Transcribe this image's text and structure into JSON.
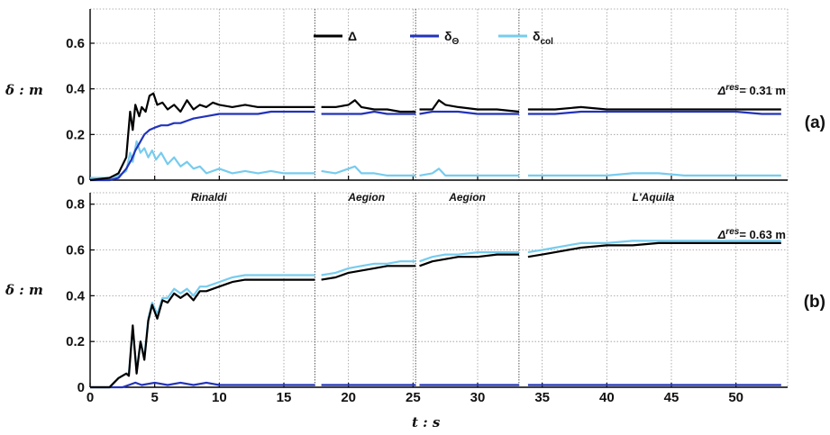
{
  "chart_data": [
    {
      "type": "line",
      "panel_tag": "(a)",
      "ylabel": "δ : m",
      "ylim": [
        0,
        0.75
      ],
      "yticks": [
        "0",
        "0.2",
        "0.4",
        "0.6"
      ],
      "ytick_values": [
        0,
        0.2,
        0.4,
        0.6
      ],
      "annotation": {
        "prefix": "Δ",
        "sup": "res",
        "text": "= 0.31 m"
      },
      "legend": {
        "position": "top-center",
        "items": [
          "Δ",
          "δΘ",
          "δcol"
        ]
      },
      "segment_labels": [
        "Rinaldi",
        "Aegion",
        "Aegion",
        "L'Aquila"
      ],
      "segment_breaks": [
        17.4,
        25.2,
        33.2
      ],
      "segment_ranges": [
        [
          0,
          17.4
        ],
        [
          17.9,
          25.2
        ],
        [
          25.5,
          33.2
        ],
        [
          33.9,
          53.5
        ]
      ],
      "series": [
        {
          "name": "Δ",
          "color": "#000000",
          "x": [
            0,
            1.5,
            2.2,
            2.8,
            3.1,
            3.3,
            3.5,
            3.8,
            4.0,
            4.3,
            4.6,
            4.9,
            5.2,
            5.6,
            6.0,
            6.5,
            7.0,
            7.5,
            8.0,
            8.5,
            9.0,
            9.5,
            10.0,
            11.0,
            12.0,
            13.0,
            14.0,
            15.0,
            16.0,
            17.4,
            17.9,
            19.0,
            20.0,
            20.5,
            21.0,
            22.0,
            23.0,
            24.0,
            25.2,
            25.5,
            26.5,
            27.0,
            27.5,
            28.5,
            30.0,
            31.5,
            33.2,
            33.9,
            36.0,
            38.0,
            40.0,
            42.0,
            44.0,
            46.0,
            48.0,
            50.0,
            52.0,
            53.5
          ],
          "values": [
            0.0,
            0.01,
            0.03,
            0.1,
            0.3,
            0.22,
            0.33,
            0.28,
            0.32,
            0.3,
            0.37,
            0.38,
            0.33,
            0.34,
            0.31,
            0.33,
            0.3,
            0.35,
            0.31,
            0.33,
            0.32,
            0.34,
            0.33,
            0.32,
            0.33,
            0.32,
            0.32,
            0.32,
            0.32,
            0.32,
            0.32,
            0.32,
            0.33,
            0.35,
            0.32,
            0.31,
            0.31,
            0.3,
            0.3,
            0.31,
            0.31,
            0.35,
            0.33,
            0.32,
            0.31,
            0.31,
            0.3,
            0.31,
            0.31,
            0.32,
            0.31,
            0.31,
            0.31,
            0.31,
            0.31,
            0.31,
            0.31,
            0.31
          ]
        },
        {
          "name": "δΘ",
          "color": "#2233bb",
          "x": [
            0,
            1.5,
            2.2,
            2.8,
            3.2,
            3.5,
            3.8,
            4.2,
            4.6,
            5.0,
            5.5,
            6.0,
            6.5,
            7.0,
            7.5,
            8.0,
            9.0,
            10.0,
            11.0,
            12.0,
            13.0,
            14.0,
            15.0,
            16.0,
            17.4,
            17.9,
            19.0,
            20.0,
            21.0,
            22.0,
            23.0,
            24.0,
            25.2,
            25.5,
            26.5,
            27.5,
            28.5,
            30.0,
            31.5,
            33.2,
            33.9,
            36.0,
            38.0,
            40.0,
            42.0,
            44.0,
            46.0,
            48.0,
            50.0,
            52.0,
            53.5
          ],
          "values": [
            0.0,
            0.0,
            0.01,
            0.05,
            0.09,
            0.13,
            0.16,
            0.2,
            0.22,
            0.23,
            0.24,
            0.24,
            0.25,
            0.25,
            0.26,
            0.27,
            0.28,
            0.29,
            0.29,
            0.29,
            0.29,
            0.3,
            0.3,
            0.3,
            0.3,
            0.29,
            0.29,
            0.29,
            0.29,
            0.3,
            0.29,
            0.29,
            0.29,
            0.29,
            0.3,
            0.3,
            0.3,
            0.29,
            0.29,
            0.29,
            0.29,
            0.29,
            0.3,
            0.3,
            0.3,
            0.3,
            0.3,
            0.3,
            0.3,
            0.29,
            0.29
          ]
        },
        {
          "name": "δcol",
          "color": "#77ccee",
          "x": [
            0,
            1.5,
            2.2,
            2.8,
            3.1,
            3.3,
            3.6,
            3.9,
            4.2,
            4.5,
            4.8,
            5.1,
            5.5,
            6.0,
            6.5,
            7.0,
            7.5,
            8.0,
            8.5,
            9.0,
            10.0,
            11.0,
            12.0,
            13.0,
            14.0,
            15.0,
            16.0,
            17.4,
            17.9,
            19.0,
            20.0,
            20.5,
            21.0,
            22.0,
            23.0,
            24.0,
            25.2,
            25.5,
            26.5,
            27.0,
            27.5,
            28.5,
            30.0,
            31.5,
            33.2,
            33.9,
            36.0,
            38.0,
            40.0,
            42.0,
            44.0,
            46.0,
            48.0,
            50.0,
            52.0,
            53.5
          ],
          "values": [
            0.01,
            0.01,
            0.02,
            0.04,
            0.12,
            0.08,
            0.17,
            0.12,
            0.14,
            0.1,
            0.13,
            0.09,
            0.12,
            0.07,
            0.1,
            0.06,
            0.08,
            0.05,
            0.06,
            0.03,
            0.05,
            0.03,
            0.04,
            0.03,
            0.04,
            0.03,
            0.03,
            0.03,
            0.04,
            0.03,
            0.05,
            0.06,
            0.03,
            0.03,
            0.02,
            0.02,
            0.02,
            0.02,
            0.03,
            0.05,
            0.02,
            0.02,
            0.02,
            0.02,
            0.02,
            0.02,
            0.02,
            0.02,
            0.02,
            0.03,
            0.03,
            0.02,
            0.02,
            0.02,
            0.02,
            0.02
          ]
        }
      ]
    },
    {
      "type": "line",
      "panel_tag": "(b)",
      "xlabel": "t : s",
      "ylabel": "δ : m",
      "xlim": [
        0,
        54
      ],
      "xticks": [
        "0",
        "5",
        "10",
        "15",
        "20",
        "25",
        "30",
        "35",
        "40",
        "45",
        "50"
      ],
      "xtick_values": [
        0,
        5,
        10,
        15,
        20,
        25,
        30,
        35,
        40,
        45,
        50
      ],
      "ylim": [
        0,
        0.85
      ],
      "yticks": [
        "0",
        "0.2",
        "0.4",
        "0.6",
        "0.8"
      ],
      "ytick_values": [
        0,
        0.2,
        0.4,
        0.6,
        0.8
      ],
      "annotation": {
        "prefix": "Δ",
        "sup": "res",
        "text": "= 0.63 m"
      },
      "segment_breaks": [
        17.4,
        25.2,
        33.2
      ],
      "segment_ranges": [
        [
          0,
          17.4
        ],
        [
          17.9,
          25.2
        ],
        [
          25.5,
          33.2
        ],
        [
          33.9,
          53.5
        ]
      ],
      "series": [
        {
          "name": "Δ",
          "color": "#000000",
          "x": [
            0,
            1.5,
            2.2,
            2.8,
            3.0,
            3.3,
            3.6,
            3.9,
            4.2,
            4.5,
            4.8,
            5.2,
            5.6,
            6.0,
            6.5,
            7.0,
            7.5,
            8.0,
            8.5,
            9.0,
            10.0,
            11.0,
            12.0,
            13.0,
            14.0,
            15.0,
            16.0,
            17.4,
            17.9,
            19.0,
            20.0,
            21.0,
            22.0,
            23.0,
            24.0,
            25.2,
            25.5,
            26.5,
            27.5,
            28.5,
            30.0,
            31.5,
            33.2,
            33.9,
            35.0,
            36.0,
            37.0,
            38.0,
            40.0,
            42.0,
            44.0,
            46.0,
            48.0,
            50.0,
            52.0,
            53.5
          ],
          "values": [
            0.0,
            0.0,
            0.04,
            0.06,
            0.05,
            0.27,
            0.06,
            0.2,
            0.12,
            0.29,
            0.36,
            0.3,
            0.38,
            0.37,
            0.41,
            0.39,
            0.41,
            0.38,
            0.42,
            0.42,
            0.44,
            0.46,
            0.47,
            0.47,
            0.47,
            0.47,
            0.47,
            0.47,
            0.47,
            0.48,
            0.5,
            0.51,
            0.52,
            0.53,
            0.53,
            0.53,
            0.53,
            0.55,
            0.56,
            0.57,
            0.57,
            0.58,
            0.58,
            0.57,
            0.58,
            0.59,
            0.6,
            0.61,
            0.62,
            0.62,
            0.63,
            0.63,
            0.63,
            0.63,
            0.63,
            0.63
          ]
        },
        {
          "name": "δΘ",
          "color": "#2233bb",
          "x": [
            0,
            2.5,
            3.0,
            3.5,
            4.0,
            5.0,
            6.0,
            7.0,
            8.0,
            9.0,
            10.0,
            12.0,
            14.0,
            16.0,
            17.4,
            17.9,
            20.0,
            22.0,
            25.2,
            25.5,
            28.0,
            30.0,
            33.2,
            33.9,
            36.0,
            40.0,
            44.0,
            48.0,
            52.0,
            53.5
          ],
          "values": [
            0.0,
            0.0,
            0.01,
            0.02,
            0.01,
            0.02,
            0.01,
            0.02,
            0.01,
            0.02,
            0.01,
            0.01,
            0.01,
            0.01,
            0.01,
            0.01,
            0.01,
            0.01,
            0.01,
            0.01,
            0.01,
            0.01,
            0.01,
            0.01,
            0.01,
            0.01,
            0.01,
            0.01,
            0.01,
            0.01
          ]
        },
        {
          "name": "δcol",
          "color": "#77ccee",
          "x": [
            0,
            1.5,
            2.2,
            2.8,
            3.0,
            3.3,
            3.6,
            3.9,
            4.2,
            4.5,
            4.8,
            5.2,
            5.6,
            6.0,
            6.5,
            7.0,
            7.5,
            8.0,
            8.5,
            9.0,
            10.0,
            11.0,
            12.0,
            13.0,
            14.0,
            15.0,
            16.0,
            17.4,
            17.9,
            19.0,
            20.0,
            21.0,
            22.0,
            23.0,
            24.0,
            25.2,
            25.5,
            26.5,
            27.5,
            28.5,
            30.0,
            31.5,
            33.2,
            33.9,
            35.0,
            36.0,
            37.0,
            38.0,
            40.0,
            42.0,
            44.0,
            46.0,
            48.0,
            50.0,
            52.0,
            53.5
          ],
          "values": [
            0.0,
            0.0,
            0.04,
            0.06,
            0.06,
            0.26,
            0.07,
            0.2,
            0.13,
            0.3,
            0.37,
            0.32,
            0.39,
            0.39,
            0.43,
            0.41,
            0.43,
            0.4,
            0.44,
            0.44,
            0.46,
            0.48,
            0.49,
            0.49,
            0.49,
            0.49,
            0.49,
            0.49,
            0.49,
            0.5,
            0.52,
            0.53,
            0.54,
            0.54,
            0.55,
            0.55,
            0.55,
            0.57,
            0.58,
            0.58,
            0.59,
            0.59,
            0.59,
            0.59,
            0.6,
            0.61,
            0.62,
            0.63,
            0.63,
            0.64,
            0.64,
            0.64,
            0.64,
            0.64,
            0.64,
            0.64
          ]
        }
      ]
    }
  ]
}
